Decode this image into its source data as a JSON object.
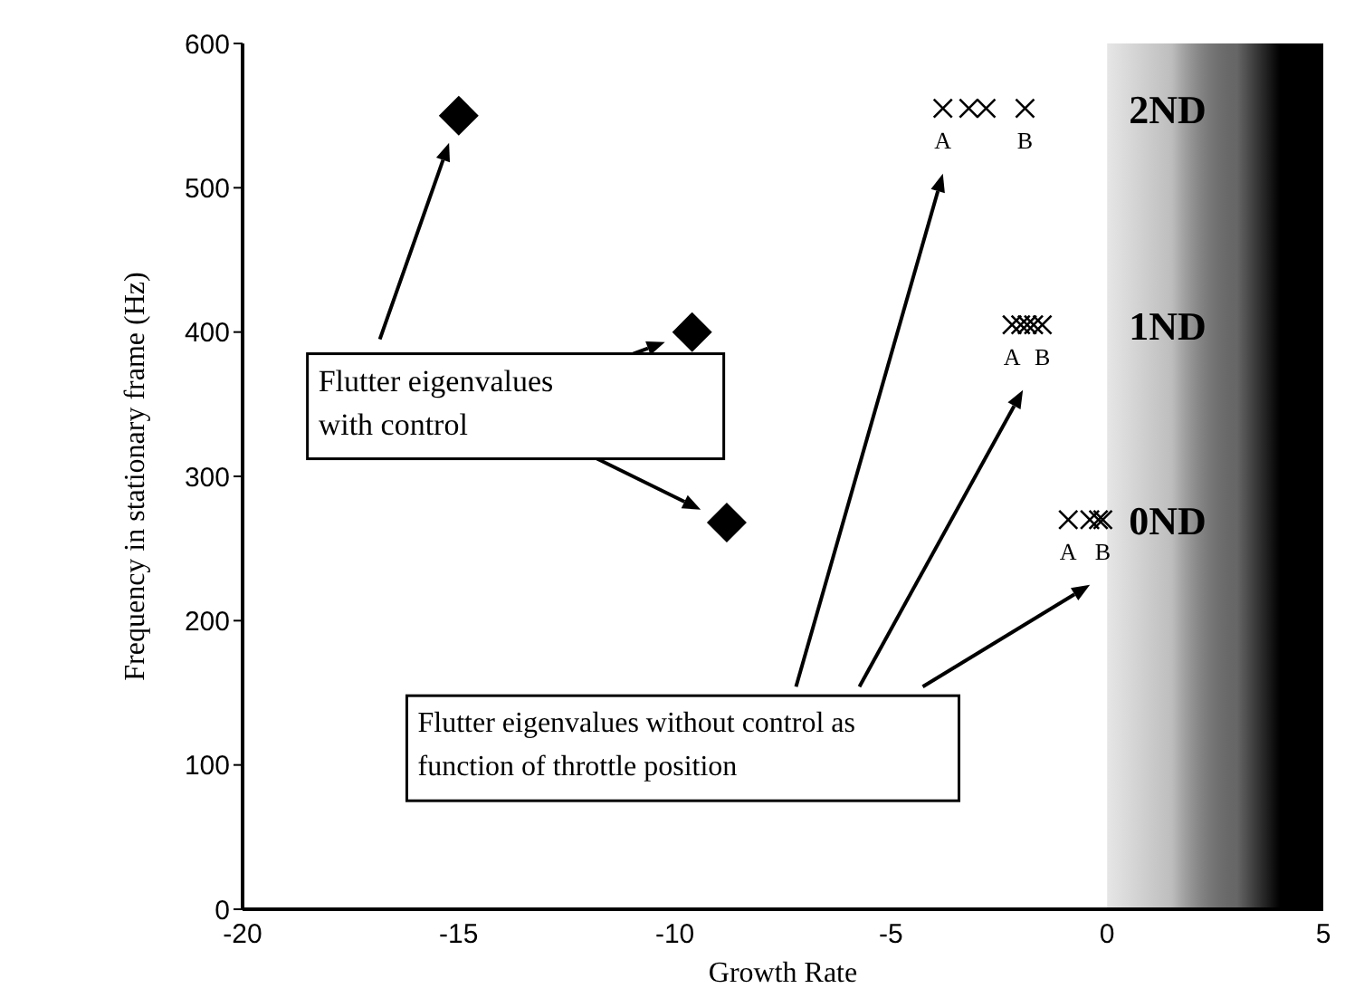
{
  "chart_data": {
    "type": "scatter",
    "xlabel": "Growth Rate",
    "ylabel": "Frequency in stationary frame (Hz)",
    "xlim": [
      -20,
      5
    ],
    "xticks": [
      -20,
      -15,
      -10,
      -5,
      0,
      5
    ],
    "ylim": [
      0,
      600
    ],
    "yticks": [
      0,
      100,
      200,
      300,
      400,
      500,
      600
    ],
    "grid": false,
    "legend": false,
    "series": [
      {
        "color": "#000000",
        "marker": "diamond",
        "x": [
          -15,
          -9.6,
          -8.8
        ],
        "values": [
          550,
          400,
          268
        ]
      },
      {
        "color": "#000000",
        "marker": "cross",
        "x": [
          -3.8,
          -3.2,
          -2.8,
          -1.9,
          -2.2,
          -2.0,
          -1.85,
          -1.7,
          -1.5,
          -0.9,
          -0.4,
          -0.2,
          -0.1
        ],
        "values": [
          555,
          555,
          555,
          555,
          405,
          405,
          405,
          405,
          405,
          270,
          270,
          270,
          270
        ]
      }
    ],
    "bands": [
      {
        "axis": "x",
        "from": 0,
        "to": 5,
        "color": "#000000"
      }
    ],
    "annotations": [
      "Flutter eigenvalues with control",
      "Flutter eigenvalues without control as function of throttle position",
      {
        "text": "A",
        "x": -3.8,
        "y": 555
      },
      {
        "text": "B",
        "x": -1.9,
        "y": 555
      },
      {
        "text": "A",
        "x": -2.2,
        "y": 405
      },
      {
        "text": "B",
        "x": -1.5,
        "y": 405
      },
      {
        "text": "A",
        "x": -0.9,
        "y": 270
      },
      {
        "text": "B",
        "x": -0.1,
        "y": 270
      },
      "2ND",
      "1ND",
      "0ND"
    ]
  }
}
